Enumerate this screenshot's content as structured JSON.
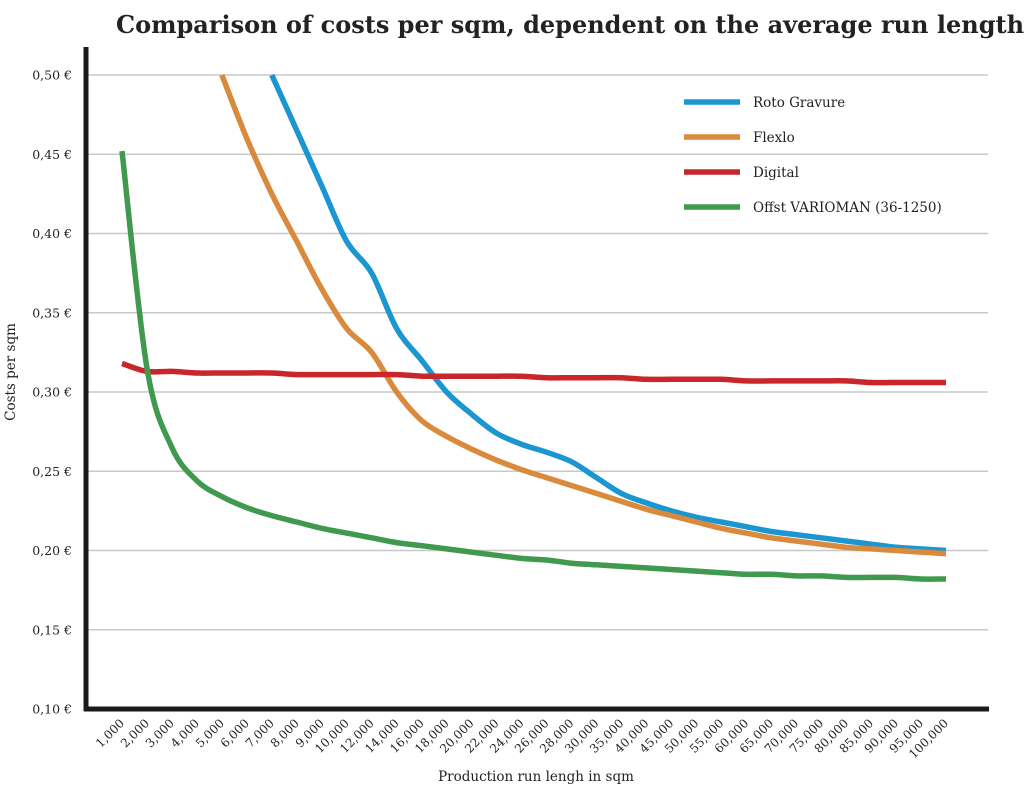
{
  "chart_data": {
    "type": "line",
    "title": "Comparison of costs per sqm, dependent on the average run length",
    "xlabel": "Production run lengh in sqm",
    "ylabel": "Costs per sqm",
    "ylim": [
      0.1,
      0.5
    ],
    "y_ticks": [
      {
        "value": 0.1,
        "label": "0,10 €"
      },
      {
        "value": 0.15,
        "label": "0,15 €"
      },
      {
        "value": 0.2,
        "label": "0,20 €"
      },
      {
        "value": 0.25,
        "label": "0,25 €"
      },
      {
        "value": 0.3,
        "label": "0,30 €"
      },
      {
        "value": 0.35,
        "label": "0,35 €"
      },
      {
        "value": 0.4,
        "label": "0,40 €"
      },
      {
        "value": 0.45,
        "label": "0,45 €"
      },
      {
        "value": 0.5,
        "label": "0,50 €"
      }
    ],
    "grid": true,
    "legend_position": "top-right",
    "categories": [
      "1,000",
      "2,000",
      "3,000",
      "4,000",
      "5,000",
      "6,000",
      "7,000",
      "8,000",
      "9,000",
      "10,000",
      "12,000",
      "14,000",
      "16,000",
      "18,000",
      "20,000",
      "22,000",
      "24,000",
      "26,000",
      "28,000",
      "30,000",
      "35,000",
      "40,000",
      "45,000",
      "50,000",
      "55,000",
      "60,000",
      "65,000",
      "70,000",
      "75,000",
      "80,000",
      "85,000",
      "90,000",
      "95,000",
      "100,000"
    ],
    "series": [
      {
        "name": "Roto Gravure",
        "color": "#1b96d1",
        "values": [
          null,
          null,
          null,
          null,
          null,
          null,
          0.5,
          0.465,
          0.43,
          0.395,
          0.375,
          0.34,
          0.32,
          0.3,
          0.286,
          0.274,
          0.267,
          0.262,
          0.256,
          0.246,
          0.236,
          0.23,
          0.225,
          0.221,
          0.218,
          0.215,
          0.212,
          0.21,
          0.208,
          0.206,
          0.204,
          0.202,
          0.201,
          0.2
        ]
      },
      {
        "name": "Flexlo",
        "color": "#d98a3d",
        "values": [
          null,
          null,
          null,
          null,
          0.5,
          0.46,
          0.425,
          0.395,
          0.365,
          0.34,
          0.325,
          0.3,
          0.282,
          0.272,
          0.264,
          0.257,
          0.251,
          0.246,
          0.241,
          0.236,
          0.231,
          0.226,
          0.222,
          0.218,
          0.214,
          0.211,
          0.208,
          0.206,
          0.204,
          0.202,
          0.201,
          0.2,
          0.199,
          0.198
        ]
      },
      {
        "name": "Digital",
        "color": "#c8262b",
        "values": [
          0.318,
          0.313,
          0.313,
          0.312,
          0.312,
          0.312,
          0.312,
          0.311,
          0.311,
          0.311,
          0.311,
          0.311,
          0.31,
          0.31,
          0.31,
          0.31,
          0.31,
          0.309,
          0.309,
          0.309,
          0.309,
          0.308,
          0.308,
          0.308,
          0.308,
          0.307,
          0.307,
          0.307,
          0.307,
          0.307,
          0.306,
          0.306,
          0.306,
          0.306
        ]
      },
      {
        "name": "Offst VARIOMAN (36-1250)",
        "color": "#3f9a4f",
        "values": [
          0.452,
          0.315,
          0.265,
          0.244,
          0.234,
          0.227,
          0.222,
          0.218,
          0.214,
          0.211,
          0.208,
          0.205,
          0.203,
          0.201,
          0.199,
          0.197,
          0.195,
          0.194,
          0.192,
          0.191,
          0.19,
          0.189,
          0.188,
          0.187,
          0.186,
          0.185,
          0.185,
          0.184,
          0.184,
          0.183,
          0.183,
          0.183,
          0.182,
          0.182
        ]
      }
    ]
  }
}
